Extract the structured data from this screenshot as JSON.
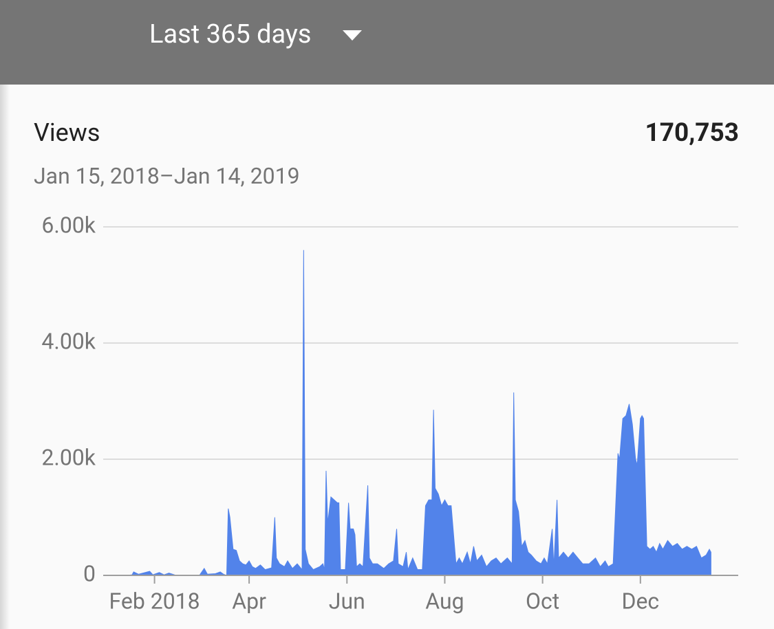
{
  "header": {
    "range_selector": "Last 365 days"
  },
  "chart_data": {
    "type": "area",
    "title": "Views",
    "total": "170,753",
    "subtitle": "Jan 15, 2018–Jan 14, 2019",
    "color": "#5283ea",
    "grid": true,
    "xlim": [
      -15,
      381
    ],
    "xticks": [
      {
        "value": 17,
        "label": "Feb 2018"
      },
      {
        "value": 76,
        "label": "Apr"
      },
      {
        "value": 137,
        "label": "Jun"
      },
      {
        "value": 198,
        "label": "Aug"
      },
      {
        "value": 259,
        "label": "Oct"
      },
      {
        "value": 320,
        "label": "Dec"
      }
    ],
    "ylim": [
      0,
      6000
    ],
    "yticks": [
      0,
      {
        "value": 2000,
        "label": "2.00k"
      },
      {
        "value": 4000,
        "label": "4.00k"
      },
      {
        "value": 6000,
        "label": "6.00k"
      }
    ],
    "x": [
      0,
      3,
      4,
      7,
      14,
      16,
      20,
      23,
      26,
      30,
      45,
      48,
      50,
      55,
      58,
      60,
      62,
      63,
      64,
      66,
      68,
      70,
      72,
      74,
      76,
      78,
      80,
      83,
      86,
      90,
      92,
      93,
      95,
      98,
      100,
      103,
      106,
      109,
      110,
      111,
      113,
      116,
      120,
      122,
      123,
      124,
      125,
      127,
      129,
      131,
      132,
      133,
      136,
      138,
      139,
      141,
      142,
      143,
      145,
      147,
      150,
      151,
      153,
      156,
      160,
      163,
      166,
      168,
      169,
      172,
      174,
      175,
      178,
      181,
      184,
      186,
      188,
      190,
      191,
      192,
      194,
      196,
      198,
      200,
      202,
      205,
      207,
      209,
      212,
      214,
      216,
      218,
      221,
      224,
      227,
      230,
      233,
      237,
      240,
      241,
      242,
      244,
      246,
      248,
      250,
      252,
      255,
      258,
      260,
      262,
      265,
      266,
      268,
      269,
      272,
      275,
      278,
      281,
      284,
      288,
      292,
      295,
      298,
      300,
      303,
      306,
      307,
      309,
      311,
      313,
      315,
      317,
      318,
      320,
      321,
      322,
      324,
      326,
      328,
      330,
      332,
      334,
      337,
      340,
      343,
      346,
      349,
      352,
      355,
      358,
      361,
      363,
      364
    ],
    "values": [
      0,
      10,
      60,
      20,
      70,
      10,
      50,
      10,
      40,
      5,
      0,
      120,
      20,
      30,
      60,
      20,
      0,
      1150,
      1000,
      450,
      430,
      250,
      200,
      180,
      250,
      150,
      120,
      180,
      100,
      130,
      1000,
      300,
      200,
      150,
      250,
      120,
      200,
      100,
      5600,
      450,
      200,
      100,
      150,
      200,
      100,
      1800,
      900,
      1350,
      1300,
      1250,
      1250,
      100,
      100,
      1250,
      800,
      800,
      700,
      150,
      200,
      150,
      1550,
      300,
      200,
      200,
      120,
      200,
      250,
      800,
      200,
      150,
      400,
      100,
      300,
      100,
      100,
      1200,
      1300,
      1300,
      2850,
      1500,
      1400,
      1200,
      1300,
      1200,
      1200,
      200,
      300,
      200,
      400,
      200,
      500,
      250,
      350,
      150,
      250,
      300,
      200,
      300,
      200,
      3150,
      1300,
      1100,
      500,
      600,
      400,
      350,
      250,
      200,
      300,
      200,
      800,
      150,
      1300,
      300,
      400,
      300,
      400,
      300,
      200,
      200,
      300,
      150,
      250,
      150,
      200,
      2100,
      2000,
      2700,
      2750,
      2950,
      2600,
      2000,
      1900,
      2700,
      2750,
      2700,
      500,
      450,
      500,
      400,
      550,
      450,
      600,
      500,
      550,
      450,
      500,
      450,
      500,
      300,
      350,
      450,
      400
    ]
  }
}
